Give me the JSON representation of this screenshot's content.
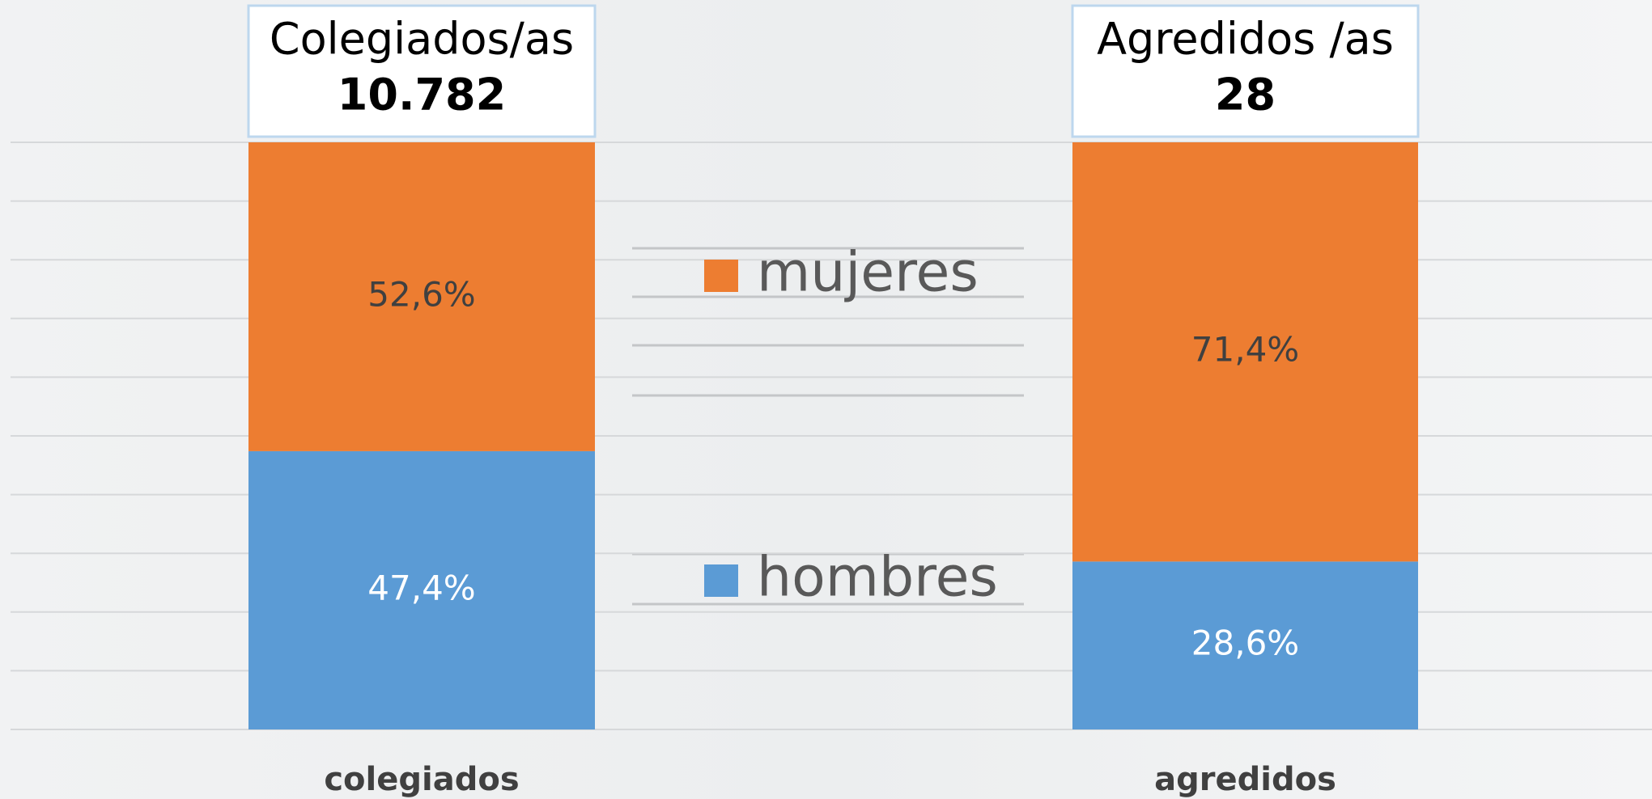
{
  "chart_data": {
    "type": "stacked_bar",
    "annotations": [
      {
        "title": "Colegiados/as",
        "total": "10.782"
      },
      {
        "title": "Agredidos /as",
        "total": "28"
      }
    ],
    "categories": [
      "colegiados",
      "agredidos"
    ],
    "series": [
      {
        "name": "hombres",
        "color": "#5b9bd5",
        "values": [
          47.4,
          28.6
        ],
        "value_labels": [
          "47,4%",
          "28,6%"
        ]
      },
      {
        "name": "mujeres",
        "color": "#ed7d31",
        "values": [
          52.6,
          71.4
        ],
        "value_labels": [
          "52,6%",
          "71,4%"
        ]
      }
    ],
    "ylim": [
      0,
      100
    ],
    "yticks": [
      0,
      10,
      20,
      30,
      40,
      50,
      60,
      70,
      80,
      90,
      100
    ],
    "grid": true
  }
}
